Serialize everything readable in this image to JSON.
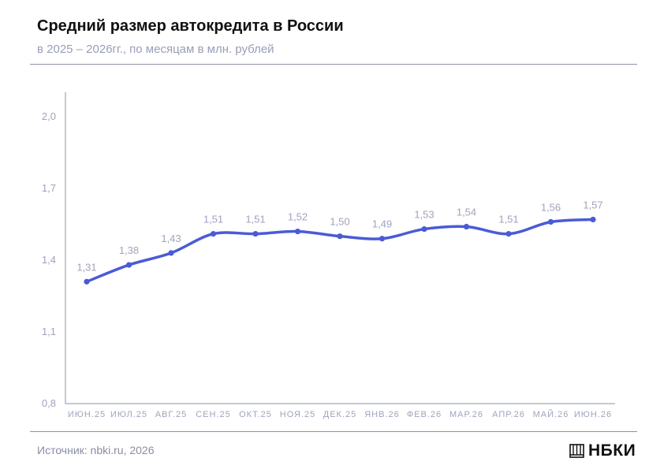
{
  "header": {
    "title": "Средний размер автокредита в России",
    "subtitle": "в 2025 – 2026гг., по месяцам в млн. рублей"
  },
  "footer": {
    "source": "Источник: nbki.ru, 2026",
    "logo_text": "НБКИ",
    "logo_icon": "nbki-logo-icon"
  },
  "colors": {
    "line": "#4a5bd6",
    "axis": "#8e91a8",
    "labels": "#a0a3bd"
  },
  "chart_data": {
    "type": "line",
    "categories": [
      "ИЮН.25",
      "ИЮЛ.25",
      "АВГ.25",
      "СЕН.25",
      "ОКТ.25",
      "НОЯ.25",
      "ДЕК.25",
      "ЯНВ.26",
      "ФЕВ.26",
      "МАР.26",
      "АПР.26",
      "МАЙ.26",
      "ИЮН.26"
    ],
    "series": [
      {
        "values": [
          1.31,
          1.38,
          1.43,
          1.51,
          1.51,
          1.52,
          1.5,
          1.49,
          1.53,
          1.54,
          1.51,
          1.56,
          1.57
        ],
        "labels": [
          "1,31",
          "1,38",
          "1,43",
          "1,51",
          "1,51",
          "1,52",
          "1,50",
          "1,49",
          "1,53",
          "1,54",
          "1,51",
          "1,56",
          "1,57"
        ]
      }
    ],
    "yticks": [
      0.8,
      1.1,
      1.4,
      1.7,
      2.0
    ],
    "ytick_labels": [
      "0,8",
      "1,1",
      "1,4",
      "1,7",
      "2,0"
    ],
    "ylim": [
      0.8,
      2.0
    ],
    "grid": false,
    "legend": "none"
  }
}
